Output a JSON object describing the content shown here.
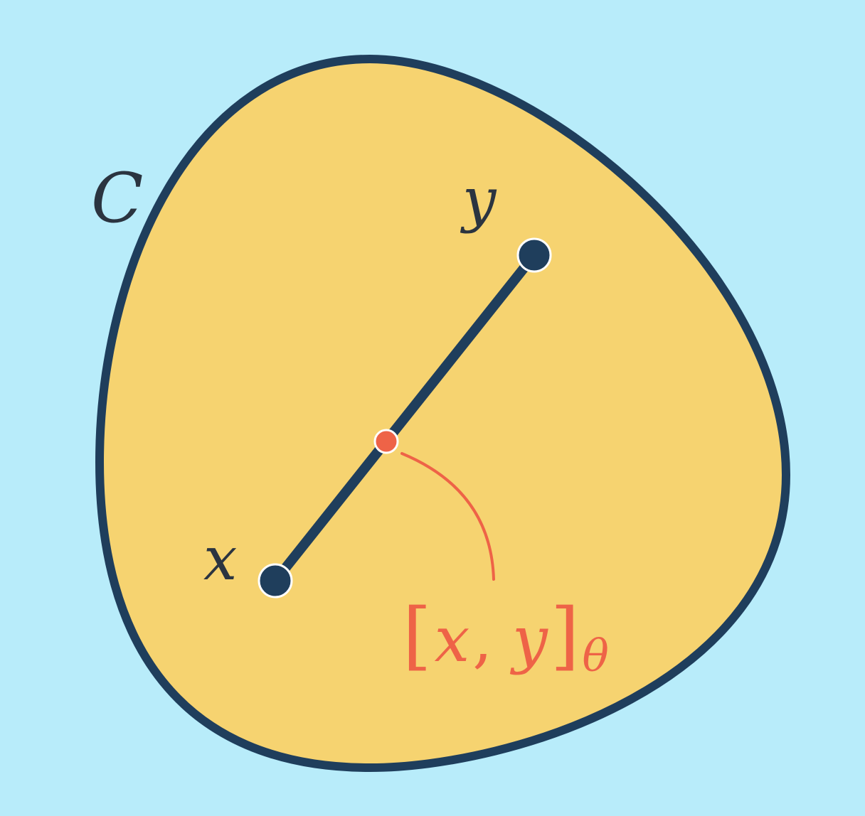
{
  "labels": {
    "set": "C",
    "point_x": "x",
    "point_y": "y",
    "combo_open": "[",
    "combo_x": "x",
    "combo_sep": ", ",
    "combo_y": "y",
    "combo_close": "]",
    "combo_sub": "θ"
  },
  "colors": {
    "background": "#b8ecfa",
    "region_fill": "#f6d370",
    "outline": "#1f3e5c",
    "accent": "#ee6347",
    "text": "#2b3440"
  }
}
